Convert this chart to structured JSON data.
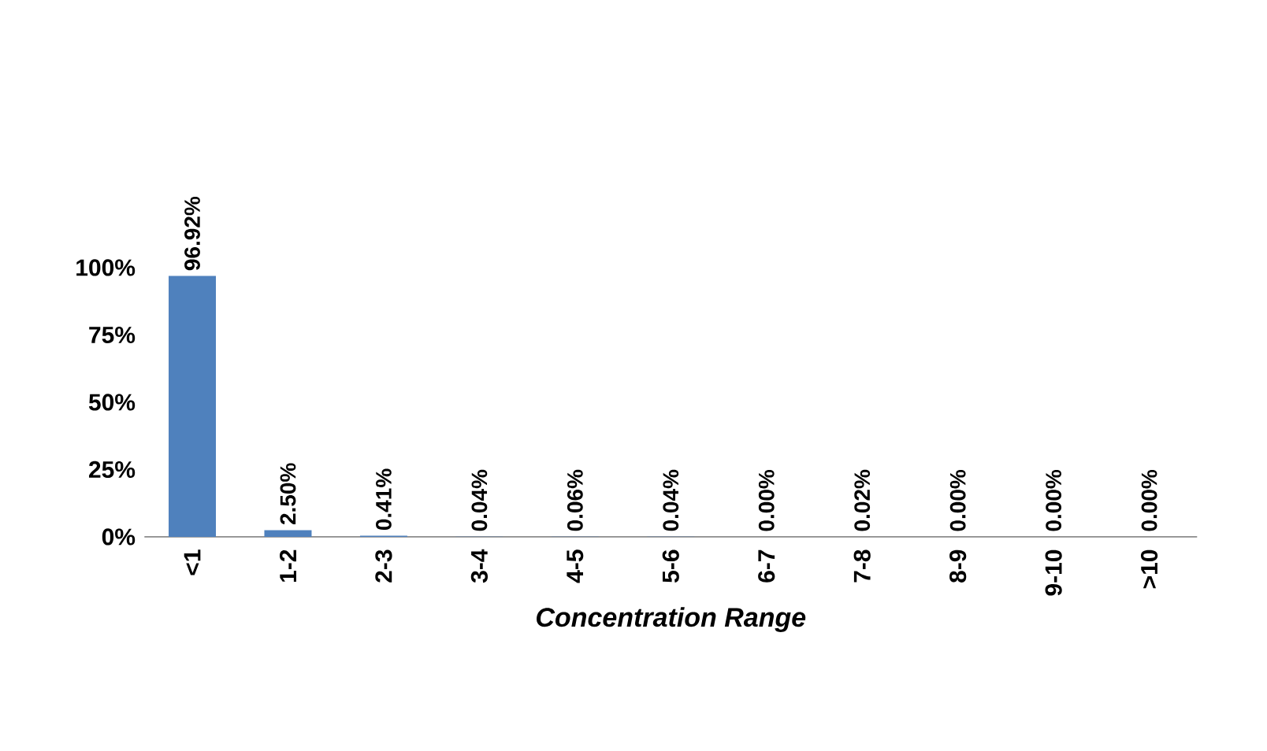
{
  "chart_data": {
    "type": "bar",
    "xlabel": "Concentration Range",
    "categories": [
      "<1",
      "1-2",
      "2-3",
      "3-4",
      "4-5",
      "5-6",
      "6-7",
      "7-8",
      "8-9",
      "9-10",
      ">10"
    ],
    "values": [
      96.92,
      2.5,
      0.41,
      0.04,
      0.06,
      0.04,
      0.0,
      0.02,
      0.0,
      0.0,
      0.0
    ],
    "value_labels": [
      "96.92%",
      "2.50%",
      "0.41%",
      "0.04%",
      "0.06%",
      "0.04%",
      "0.00%",
      "0.02%",
      "0.00%",
      "0.00%",
      "0.00%"
    ],
    "color": "#4f81bd",
    "ylim": [
      0,
      100
    ],
    "yticks": [
      {
        "value": 0,
        "label": "0%"
      },
      {
        "value": 25,
        "label": "25%"
      },
      {
        "value": 50,
        "label": "50%"
      },
      {
        "value": 75,
        "label": "75%"
      },
      {
        "value": 100,
        "label": "100%"
      }
    ],
    "grid": false
  }
}
